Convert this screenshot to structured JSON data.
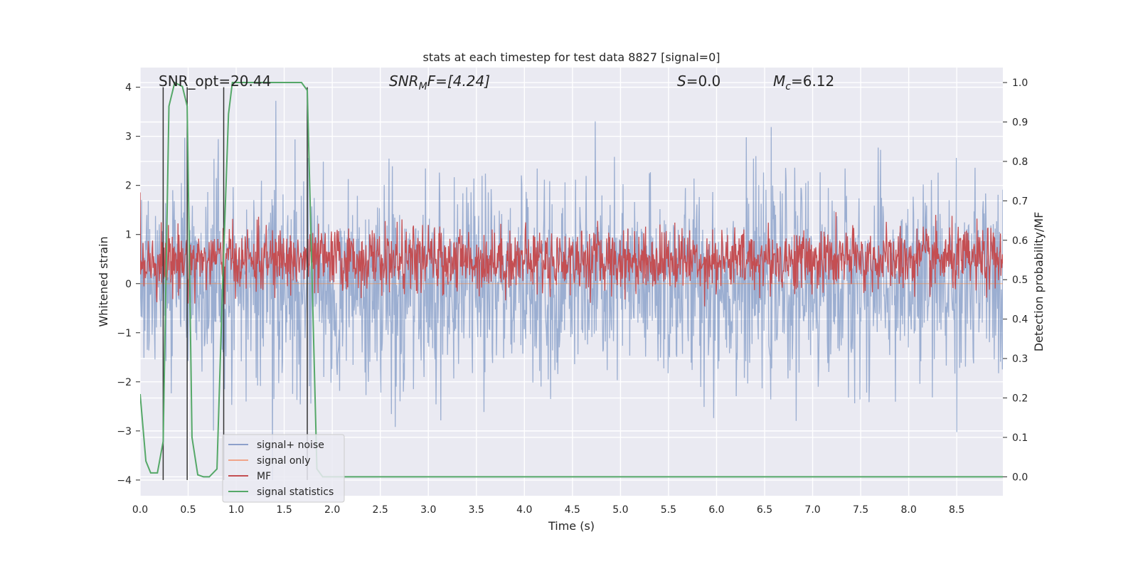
{
  "chart_data": {
    "type": "line",
    "title": "stats at each timestep for test data 8827 [signal=0]",
    "xlabel": "Time (s)",
    "ylabel": "Whitened strain",
    "ylabel_right": "Detection probability/MF",
    "xlim": [
      0.0,
      8.98
    ],
    "ylim": [
      -4.32,
      4.4
    ],
    "ylim_right": [
      -0.048,
      1.038
    ],
    "x_ticks": [
      0.0,
      0.5,
      1.0,
      1.5,
      2.0,
      2.5,
      3.0,
      3.5,
      4.0,
      4.5,
      5.0,
      5.5,
      6.0,
      6.5,
      7.0,
      7.5,
      8.0,
      8.5
    ],
    "x_tick_labels": [
      "0.0",
      "0.5",
      "1.0",
      "1.5",
      "2.0",
      "2.5",
      "3.0",
      "3.5",
      "4.0",
      "4.5",
      "5.0",
      "5.5",
      "6.0",
      "6.5",
      "7.0",
      "7.5",
      "8.0",
      "8.5"
    ],
    "y_ticks": [
      -4,
      -3,
      -2,
      -1,
      0,
      1,
      2,
      3,
      4
    ],
    "y_tick_labels": [
      "−4",
      "−3",
      "−2",
      "−1",
      "0",
      "1",
      "2",
      "3",
      "4"
    ],
    "y_right_ticks": [
      0.0,
      0.1,
      0.2,
      0.3,
      0.4,
      0.5,
      0.6,
      0.7,
      0.8,
      0.9,
      1.0
    ],
    "y_right_tick_labels": [
      "0.0",
      "0.1",
      "0.2",
      "0.3",
      "0.4",
      "0.5",
      "0.6",
      "0.7",
      "0.8",
      "0.9",
      "1.0"
    ],
    "annotations": {
      "snr_opt": "SNR_opt=20.44",
      "snr_mf_sym": "SNR",
      "snr_mf_sub": "M",
      "snr_mf_rest": "F=[4.24]",
      "s_sym": "S",
      "s_rest": "=0.0",
      "mc_sym": "M",
      "mc_sub": "c",
      "mc_rest": "=6.12"
    },
    "legend": {
      "position": "lower-left",
      "entries": [
        {
          "label": "signal+ noise",
          "color": "#8da0cb"
        },
        {
          "label": "signal only",
          "color": "#f0a58a"
        },
        {
          "label": "MF",
          "color": "#c44e52"
        },
        {
          "label": "signal statistics",
          "color": "#55a868"
        }
      ]
    },
    "series": [
      {
        "name": "signal+ noise",
        "color": "#4c72b0",
        "kind": "noise",
        "amplitude_sd": 1.0,
        "max_abs": 4.0,
        "n_points": 1800
      },
      {
        "name": "signal only",
        "color": "#dd8452",
        "kind": "flat",
        "value": 0.0
      },
      {
        "name": "MF",
        "color": "#c44e52",
        "kind": "noise",
        "axis": "right",
        "mean": 0.55,
        "amplitude_sd": 0.04,
        "n_points": 1800
      },
      {
        "name": "signal statistics",
        "color": "#55a868",
        "axis": "right",
        "x": [
          0.0,
          0.06,
          0.11,
          0.18,
          0.24,
          0.3,
          0.36,
          0.44,
          0.49,
          0.54,
          0.6,
          0.66,
          0.72,
          0.8,
          0.86,
          0.92,
          0.96,
          1.05,
          1.2,
          1.4,
          1.6,
          1.68,
          1.74,
          1.79,
          1.84,
          1.9,
          2.0,
          3.0,
          4.0,
          5.0,
          6.0,
          7.0,
          8.0,
          8.98
        ],
        "y": [
          0.21,
          0.04,
          0.01,
          0.01,
          0.09,
          0.94,
          1.0,
          0.99,
          0.94,
          0.1,
          0.005,
          0.0,
          0.0,
          0.02,
          0.5,
          0.92,
          1.0,
          1.0,
          1.0,
          1.0,
          1.0,
          1.0,
          0.98,
          0.5,
          0.02,
          0.0,
          0.0,
          0.0,
          0.0,
          0.0,
          0.0,
          0.0,
          0.0,
          0.0
        ]
      }
    ],
    "vertical_lines": [
      {
        "x": 0.24,
        "ymin": -4.0,
        "ymax": 4.0,
        "color": "#333333"
      },
      {
        "x": 0.49,
        "ymin": -4.0,
        "ymax": 4.0,
        "color": "#333333"
      },
      {
        "x": 0.87,
        "ymin": -4.0,
        "ymax": 4.0,
        "color": "#333333"
      },
      {
        "x": 1.74,
        "ymin": -4.0,
        "ymax": 4.0,
        "color": "#333333"
      }
    ]
  }
}
